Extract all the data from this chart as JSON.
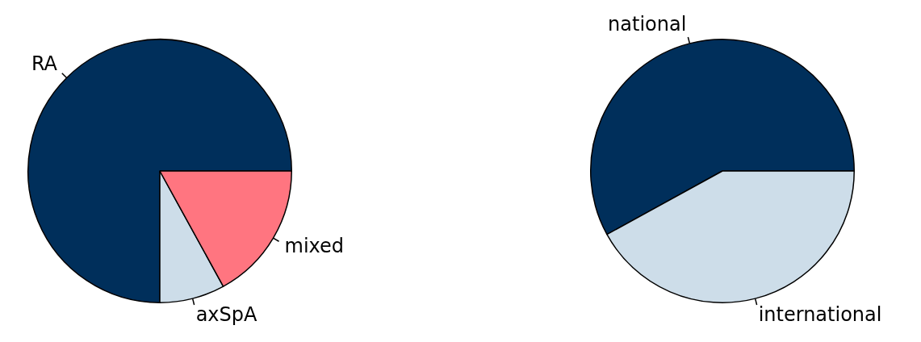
{
  "chart_data": [
    {
      "type": "pie",
      "categories": [
        "RA",
        "axSpA",
        "mixed"
      ],
      "values": [
        75,
        8,
        17
      ],
      "colors": [
        "#002f5b",
        "#cddde9",
        "#ff7580"
      ]
    },
    {
      "type": "pie",
      "categories": [
        "national",
        "international"
      ],
      "values": [
        58,
        42
      ],
      "colors": [
        "#002f5b",
        "#cddde9"
      ]
    }
  ]
}
